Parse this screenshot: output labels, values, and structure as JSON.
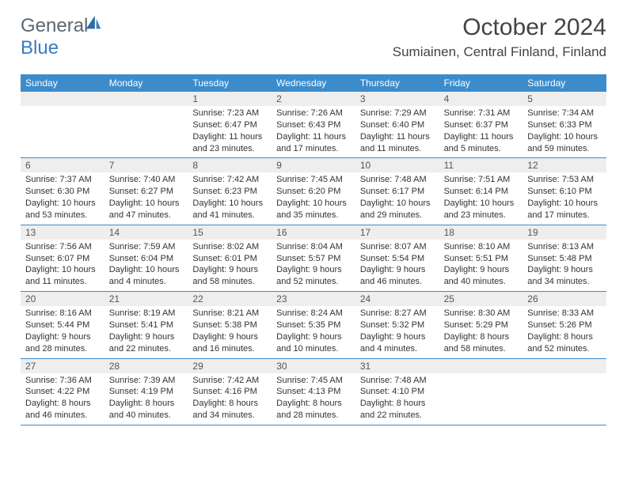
{
  "brand": {
    "text1": "General",
    "text2": "Blue"
  },
  "title": "October 2024",
  "location": "Sumiainen, Central Finland, Finland",
  "colors": {
    "header_bg": "#3c8ccc",
    "header_fg": "#ffffff",
    "daynum_bg": "#eeeeee",
    "text": "#333333",
    "logo_gray": "#5c6770",
    "logo_blue": "#3a7cbf",
    "rule": "#3c8ccc"
  },
  "typography": {
    "title_fontsize": 30,
    "location_fontsize": 17,
    "dayhead_fontsize": 12,
    "daynum_fontsize": 12,
    "body_fontsize": 11
  },
  "day_names": [
    "Sunday",
    "Monday",
    "Tuesday",
    "Wednesday",
    "Thursday",
    "Friday",
    "Saturday"
  ],
  "weeks": [
    [
      {
        "n": "",
        "sr": "",
        "ss": "",
        "dl": ""
      },
      {
        "n": "",
        "sr": "",
        "ss": "",
        "dl": ""
      },
      {
        "n": "1",
        "sr": "Sunrise: 7:23 AM",
        "ss": "Sunset: 6:47 PM",
        "dl": "Daylight: 11 hours and 23 minutes."
      },
      {
        "n": "2",
        "sr": "Sunrise: 7:26 AM",
        "ss": "Sunset: 6:43 PM",
        "dl": "Daylight: 11 hours and 17 minutes."
      },
      {
        "n": "3",
        "sr": "Sunrise: 7:29 AM",
        "ss": "Sunset: 6:40 PM",
        "dl": "Daylight: 11 hours and 11 minutes."
      },
      {
        "n": "4",
        "sr": "Sunrise: 7:31 AM",
        "ss": "Sunset: 6:37 PM",
        "dl": "Daylight: 11 hours and 5 minutes."
      },
      {
        "n": "5",
        "sr": "Sunrise: 7:34 AM",
        "ss": "Sunset: 6:33 PM",
        "dl": "Daylight: 10 hours and 59 minutes."
      }
    ],
    [
      {
        "n": "6",
        "sr": "Sunrise: 7:37 AM",
        "ss": "Sunset: 6:30 PM",
        "dl": "Daylight: 10 hours and 53 minutes."
      },
      {
        "n": "7",
        "sr": "Sunrise: 7:40 AM",
        "ss": "Sunset: 6:27 PM",
        "dl": "Daylight: 10 hours and 47 minutes."
      },
      {
        "n": "8",
        "sr": "Sunrise: 7:42 AM",
        "ss": "Sunset: 6:23 PM",
        "dl": "Daylight: 10 hours and 41 minutes."
      },
      {
        "n": "9",
        "sr": "Sunrise: 7:45 AM",
        "ss": "Sunset: 6:20 PM",
        "dl": "Daylight: 10 hours and 35 minutes."
      },
      {
        "n": "10",
        "sr": "Sunrise: 7:48 AM",
        "ss": "Sunset: 6:17 PM",
        "dl": "Daylight: 10 hours and 29 minutes."
      },
      {
        "n": "11",
        "sr": "Sunrise: 7:51 AM",
        "ss": "Sunset: 6:14 PM",
        "dl": "Daylight: 10 hours and 23 minutes."
      },
      {
        "n": "12",
        "sr": "Sunrise: 7:53 AM",
        "ss": "Sunset: 6:10 PM",
        "dl": "Daylight: 10 hours and 17 minutes."
      }
    ],
    [
      {
        "n": "13",
        "sr": "Sunrise: 7:56 AM",
        "ss": "Sunset: 6:07 PM",
        "dl": "Daylight: 10 hours and 11 minutes."
      },
      {
        "n": "14",
        "sr": "Sunrise: 7:59 AM",
        "ss": "Sunset: 6:04 PM",
        "dl": "Daylight: 10 hours and 4 minutes."
      },
      {
        "n": "15",
        "sr": "Sunrise: 8:02 AM",
        "ss": "Sunset: 6:01 PM",
        "dl": "Daylight: 9 hours and 58 minutes."
      },
      {
        "n": "16",
        "sr": "Sunrise: 8:04 AM",
        "ss": "Sunset: 5:57 PM",
        "dl": "Daylight: 9 hours and 52 minutes."
      },
      {
        "n": "17",
        "sr": "Sunrise: 8:07 AM",
        "ss": "Sunset: 5:54 PM",
        "dl": "Daylight: 9 hours and 46 minutes."
      },
      {
        "n": "18",
        "sr": "Sunrise: 8:10 AM",
        "ss": "Sunset: 5:51 PM",
        "dl": "Daylight: 9 hours and 40 minutes."
      },
      {
        "n": "19",
        "sr": "Sunrise: 8:13 AM",
        "ss": "Sunset: 5:48 PM",
        "dl": "Daylight: 9 hours and 34 minutes."
      }
    ],
    [
      {
        "n": "20",
        "sr": "Sunrise: 8:16 AM",
        "ss": "Sunset: 5:44 PM",
        "dl": "Daylight: 9 hours and 28 minutes."
      },
      {
        "n": "21",
        "sr": "Sunrise: 8:19 AM",
        "ss": "Sunset: 5:41 PM",
        "dl": "Daylight: 9 hours and 22 minutes."
      },
      {
        "n": "22",
        "sr": "Sunrise: 8:21 AM",
        "ss": "Sunset: 5:38 PM",
        "dl": "Daylight: 9 hours and 16 minutes."
      },
      {
        "n": "23",
        "sr": "Sunrise: 8:24 AM",
        "ss": "Sunset: 5:35 PM",
        "dl": "Daylight: 9 hours and 10 minutes."
      },
      {
        "n": "24",
        "sr": "Sunrise: 8:27 AM",
        "ss": "Sunset: 5:32 PM",
        "dl": "Daylight: 9 hours and 4 minutes."
      },
      {
        "n": "25",
        "sr": "Sunrise: 8:30 AM",
        "ss": "Sunset: 5:29 PM",
        "dl": "Daylight: 8 hours and 58 minutes."
      },
      {
        "n": "26",
        "sr": "Sunrise: 8:33 AM",
        "ss": "Sunset: 5:26 PM",
        "dl": "Daylight: 8 hours and 52 minutes."
      }
    ],
    [
      {
        "n": "27",
        "sr": "Sunrise: 7:36 AM",
        "ss": "Sunset: 4:22 PM",
        "dl": "Daylight: 8 hours and 46 minutes."
      },
      {
        "n": "28",
        "sr": "Sunrise: 7:39 AM",
        "ss": "Sunset: 4:19 PM",
        "dl": "Daylight: 8 hours and 40 minutes."
      },
      {
        "n": "29",
        "sr": "Sunrise: 7:42 AM",
        "ss": "Sunset: 4:16 PM",
        "dl": "Daylight: 8 hours and 34 minutes."
      },
      {
        "n": "30",
        "sr": "Sunrise: 7:45 AM",
        "ss": "Sunset: 4:13 PM",
        "dl": "Daylight: 8 hours and 28 minutes."
      },
      {
        "n": "31",
        "sr": "Sunrise: 7:48 AM",
        "ss": "Sunset: 4:10 PM",
        "dl": "Daylight: 8 hours and 22 minutes."
      },
      {
        "n": "",
        "sr": "",
        "ss": "",
        "dl": ""
      },
      {
        "n": "",
        "sr": "",
        "ss": "",
        "dl": ""
      }
    ]
  ]
}
